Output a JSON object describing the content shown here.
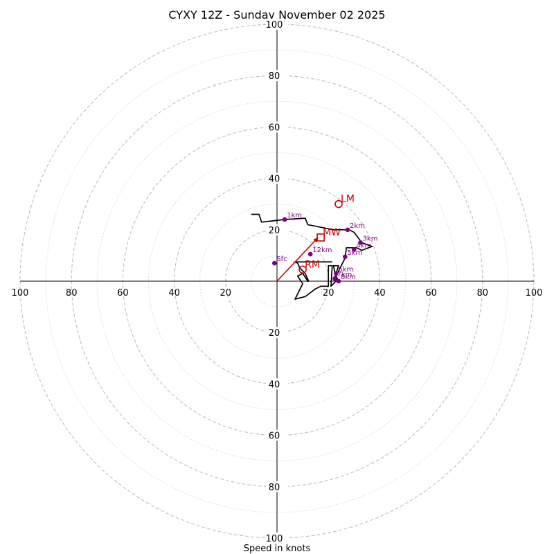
{
  "chart_data": {
    "type": "scatter",
    "title": "CYXY 12Z - Sunday November 02 2025",
    "xlabel": "Speed in knots",
    "ylabel": "",
    "xlim": [
      -100,
      100
    ],
    "ylim": [
      -100,
      100
    ],
    "ring_major": [
      20,
      40,
      60,
      80,
      100
    ],
    "ring_minor": [
      10,
      30,
      50,
      70,
      90
    ],
    "x_tick_labels": [
      "100",
      "80",
      "60",
      "40",
      "20",
      "20",
      "40",
      "60",
      "80",
      "100"
    ],
    "y_tick_labels": [
      "100",
      "80",
      "60",
      "40",
      "20",
      "20",
      "40",
      "60",
      "80",
      "100"
    ],
    "grid": true,
    "hodograph_trace": [
      [
        -10,
        26
      ],
      [
        -7,
        26
      ],
      [
        -6,
        23
      ],
      [
        3,
        24
      ],
      [
        11,
        24.5
      ],
      [
        12,
        22
      ],
      [
        22,
        20
      ],
      [
        26,
        20
      ],
      [
        28,
        20
      ],
      [
        30,
        19
      ],
      [
        33,
        15
      ],
      [
        37,
        13.5
      ],
      [
        33,
        12
      ],
      [
        31,
        13
      ],
      [
        27,
        13
      ],
      [
        26.5,
        9
      ],
      [
        25,
        6
      ],
      [
        23,
        2
      ],
      [
        24,
        0
      ],
      [
        23,
        1
      ],
      [
        22,
        6
      ],
      [
        24,
        6
      ],
      [
        23,
        3
      ],
      [
        22.5,
        1
      ],
      [
        23,
        0
      ],
      [
        22,
        -1
      ],
      [
        21,
        -2
      ],
      [
        21.5,
        6
      ],
      [
        20,
        6
      ],
      [
        20,
        -2
      ],
      [
        18,
        -2
      ],
      [
        17,
        -2
      ],
      [
        15,
        -3
      ],
      [
        11,
        -6
      ],
      [
        7,
        -7
      ],
      [
        9,
        -3
      ],
      [
        10,
        -1
      ],
      [
        8,
        2
      ],
      [
        10,
        3
      ],
      [
        12,
        0
      ],
      [
        12.3,
        0
      ],
      [
        11,
        3
      ],
      [
        9,
        5
      ],
      [
        8,
        7
      ],
      [
        7,
        7.5
      ],
      [
        21.5,
        7.5
      ]
    ],
    "height_markers": [
      {
        "label": "Sfc",
        "x": -1,
        "y": 7
      },
      {
        "label": "1km",
        "x": 3,
        "y": 24
      },
      {
        "label": "2km",
        "x": 27.5,
        "y": 20
      },
      {
        "label": "3km",
        "x": 32.5,
        "y": 15
      },
      {
        "label": "4km",
        "x": 30,
        "y": 12.3
      },
      {
        "label": "5km",
        "x": 26.5,
        "y": 9.5
      },
      {
        "label": "6km",
        "x": 23,
        "y": 3
      },
      {
        "label": "7km",
        "x": 22.5,
        "y": 1
      },
      {
        "label": "8km",
        "x": 24,
        "y": 0
      },
      {
        "label": "12km",
        "x": 13,
        "y": 10.5
      }
    ],
    "storm_motion": {
      "lm": {
        "label": "LM",
        "x": 24,
        "y": 30
      },
      "mw": {
        "label": "MW",
        "x": 17,
        "y": 17
      },
      "rm": {
        "label": "RM",
        "x": 10,
        "y": 4.5
      },
      "shear_vector": {
        "x0": 0,
        "y0": 0,
        "x1": 16,
        "y1": 17
      }
    },
    "colors": {
      "trace": "#000000",
      "marker": "#800080",
      "storm": "#cc0000",
      "grid_major": "#bdbdbd",
      "grid_minor": "#d4d4d4",
      "axis": "#000000"
    }
  }
}
